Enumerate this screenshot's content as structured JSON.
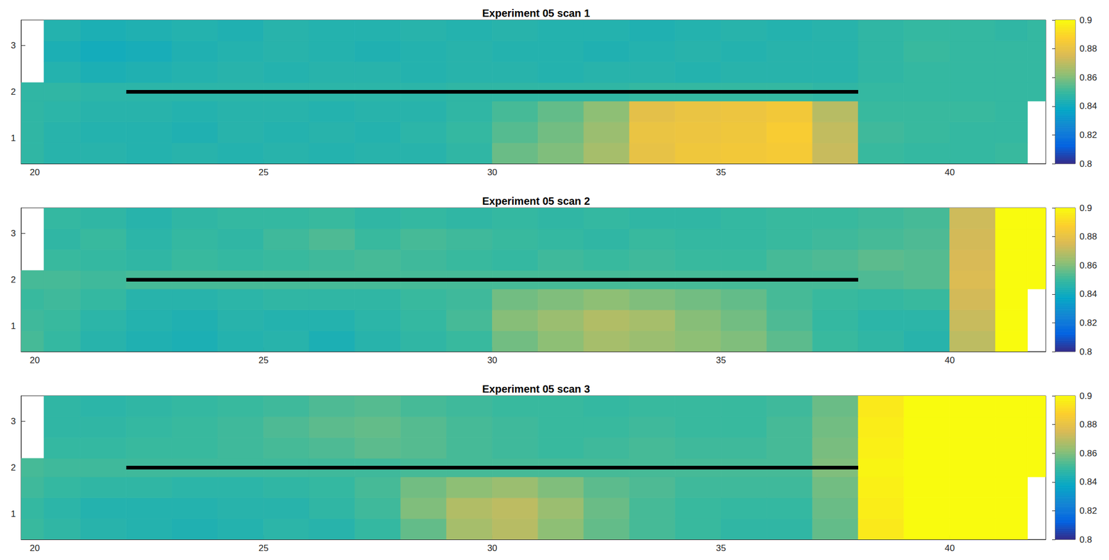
{
  "chart_data": [
    {
      "type": "heatmap",
      "title": "Experiment 05 scan 1",
      "xlim": [
        19.7,
        42.1
      ],
      "ylim": [
        0.45,
        3.55
      ],
      "xticks": [
        20,
        25,
        30,
        35,
        40
      ],
      "yticks": [
        1,
        2,
        3
      ],
      "x_edges": [
        19.7,
        20.2,
        21,
        22,
        23,
        24,
        25,
        26,
        27,
        28,
        29,
        30,
        31,
        32,
        33,
        34,
        35,
        36,
        37,
        38,
        39,
        40,
        41,
        41.7,
        42.1
      ],
      "y_edges": [
        0.45,
        0.9,
        1.35,
        1.8,
        2.2,
        2.65,
        3.1,
        3.55
      ],
      "cells": [
        [
          0.848,
          0.846,
          0.846,
          0.845,
          0.846,
          0.845,
          0.846,
          0.845,
          0.846,
          0.846,
          0.848,
          0.857,
          0.86,
          0.866,
          0.88,
          0.883,
          0.884,
          0.885,
          0.872,
          0.85,
          0.849,
          0.849,
          0.85,
          null
        ],
        [
          0.848,
          0.846,
          0.845,
          0.845,
          0.844,
          0.846,
          0.845,
          0.846,
          0.845,
          0.847,
          0.849,
          0.854,
          0.858,
          0.864,
          0.881,
          0.882,
          0.883,
          0.886,
          0.871,
          0.851,
          0.85,
          0.849,
          0.849,
          null
        ],
        [
          0.848,
          0.847,
          0.846,
          0.846,
          0.845,
          0.846,
          0.846,
          0.845,
          0.846,
          0.846,
          0.848,
          0.852,
          0.856,
          0.862,
          0.879,
          0.881,
          0.882,
          0.884,
          0.869,
          0.85,
          0.85,
          0.85,
          0.849,
          null
        ],
        [
          0.848,
          0.848,
          0.847,
          0.847,
          0.847,
          0.847,
          0.847,
          0.847,
          0.847,
          0.847,
          0.848,
          0.848,
          0.848,
          0.848,
          0.849,
          0.849,
          0.849,
          0.849,
          0.848,
          0.849,
          0.849,
          0.849,
          0.849,
          0.849
        ],
        [
          null,
          0.845,
          0.843,
          0.844,
          0.845,
          0.846,
          0.845,
          0.846,
          0.846,
          0.845,
          0.846,
          0.846,
          0.845,
          0.846,
          0.846,
          0.845,
          0.846,
          0.846,
          0.846,
          0.848,
          0.849,
          0.849,
          0.849,
          0.849
        ],
        [
          null,
          0.843,
          0.841,
          0.842,
          0.844,
          0.845,
          0.846,
          0.845,
          0.844,
          0.845,
          0.846,
          0.845,
          0.845,
          0.844,
          0.845,
          0.846,
          0.845,
          0.846,
          0.846,
          0.848,
          0.85,
          0.849,
          0.849,
          0.849
        ],
        [
          null,
          0.845,
          0.843,
          0.844,
          0.845,
          0.844,
          0.846,
          0.845,
          0.845,
          0.846,
          0.845,
          0.846,
          0.845,
          0.845,
          0.844,
          0.845,
          0.846,
          0.845,
          0.846,
          0.848,
          0.849,
          0.849,
          0.848,
          0.849
        ]
      ],
      "colorbar": {
        "range": [
          0.8,
          0.9
        ],
        "ticks": [
          0.8,
          0.82,
          0.84,
          0.86,
          0.88,
          0.9
        ]
      },
      "line": {
        "x": [
          22,
          38
        ],
        "y": [
          2,
          2
        ],
        "color": "#000000"
      }
    },
    {
      "type": "heatmap",
      "title": "Experiment 05 scan 2",
      "xlim": [
        19.7,
        42.1
      ],
      "ylim": [
        0.45,
        3.55
      ],
      "xticks": [
        20,
        25,
        30,
        35,
        40
      ],
      "yticks": [
        1,
        2,
        3
      ],
      "x_edges": [
        19.7,
        20.2,
        21,
        22,
        23,
        24,
        25,
        26,
        27,
        28,
        29,
        30,
        31,
        32,
        33,
        34,
        35,
        36,
        37,
        38,
        39,
        40,
        41,
        41.7,
        42.1
      ],
      "y_edges": [
        0.45,
        0.9,
        1.35,
        1.8,
        2.2,
        2.65,
        3.1,
        3.55
      ],
      "cells": [
        [
          0.852,
          0.849,
          0.846,
          0.844,
          0.843,
          0.845,
          0.846,
          0.843,
          0.846,
          0.848,
          0.85,
          0.858,
          0.862,
          0.866,
          0.864,
          0.862,
          0.86,
          0.855,
          0.85,
          0.848,
          0.846,
          0.87,
          0.915,
          null
        ],
        [
          0.851,
          0.85,
          0.847,
          0.845,
          0.844,
          0.846,
          0.845,
          0.845,
          0.847,
          0.849,
          0.852,
          0.861,
          0.864,
          0.868,
          0.866,
          0.861,
          0.858,
          0.853,
          0.849,
          0.847,
          0.847,
          0.872,
          0.915,
          null
        ],
        [
          0.85,
          0.851,
          0.849,
          0.846,
          0.846,
          0.847,
          0.848,
          0.848,
          0.848,
          0.85,
          0.851,
          0.858,
          0.86,
          0.862,
          0.86,
          0.858,
          0.856,
          0.852,
          0.85,
          0.849,
          0.85,
          0.874,
          0.915,
          null
        ],
        [
          0.852,
          0.852,
          0.851,
          0.852,
          0.852,
          0.852,
          0.852,
          0.852,
          0.852,
          0.852,
          0.852,
          0.852,
          0.852,
          0.852,
          0.852,
          0.852,
          0.852,
          0.852,
          0.852,
          0.853,
          0.854,
          0.876,
          0.915,
          0.915
        ],
        [
          null,
          0.85,
          0.849,
          0.848,
          0.85,
          0.849,
          0.85,
          0.851,
          0.852,
          0.851,
          0.85,
          0.849,
          0.851,
          0.85,
          0.851,
          0.85,
          0.85,
          0.852,
          0.853,
          0.855,
          0.854,
          0.875,
          0.915,
          0.915
        ],
        [
          null,
          0.848,
          0.85,
          0.847,
          0.849,
          0.848,
          0.851,
          0.853,
          0.85,
          0.852,
          0.851,
          0.85,
          0.849,
          0.848,
          0.85,
          0.849,
          0.849,
          0.85,
          0.851,
          0.852,
          0.853,
          0.874,
          0.915,
          0.915
        ],
        [
          null,
          0.849,
          0.848,
          0.846,
          0.848,
          0.849,
          0.849,
          0.85,
          0.848,
          0.849,
          0.848,
          0.849,
          0.848,
          0.849,
          0.848,
          0.848,
          0.849,
          0.85,
          0.85,
          0.851,
          0.852,
          0.873,
          0.915,
          0.915
        ]
      ],
      "colorbar": {
        "range": [
          0.8,
          0.9
        ],
        "ticks": [
          0.8,
          0.82,
          0.84,
          0.86,
          0.88,
          0.9
        ]
      },
      "line": {
        "x": [
          22,
          38
        ],
        "y": [
          2,
          2
        ],
        "color": "#000000"
      }
    },
    {
      "type": "heatmap",
      "title": "Experiment 05 scan 3",
      "xlim": [
        19.7,
        42.1
      ],
      "ylim": [
        0.45,
        3.55
      ],
      "xticks": [
        20,
        25,
        30,
        35,
        40
      ],
      "yticks": [
        1,
        2,
        3
      ],
      "x_edges": [
        19.7,
        20.2,
        21,
        22,
        23,
        24,
        25,
        26,
        27,
        28,
        29,
        30,
        31,
        32,
        33,
        34,
        35,
        36,
        37,
        38,
        39,
        40,
        41,
        41.7,
        42.1
      ],
      "y_edges": [
        0.45,
        0.9,
        1.35,
        1.8,
        2.2,
        2.65,
        3.1,
        3.55
      ],
      "cells": [
        [
          0.85,
          0.848,
          0.846,
          0.845,
          0.844,
          0.845,
          0.847,
          0.846,
          0.849,
          0.856,
          0.866,
          0.869,
          0.862,
          0.856,
          0.852,
          0.85,
          0.848,
          0.848,
          0.856,
          0.895,
          0.915,
          0.915,
          0.915,
          null
        ],
        [
          0.849,
          0.847,
          0.845,
          0.845,
          0.845,
          0.846,
          0.846,
          0.848,
          0.851,
          0.86,
          0.868,
          0.87,
          0.864,
          0.857,
          0.852,
          0.85,
          0.849,
          0.849,
          0.857,
          0.896,
          0.915,
          0.915,
          0.915,
          null
        ],
        [
          0.851,
          0.849,
          0.848,
          0.848,
          0.847,
          0.847,
          0.848,
          0.849,
          0.852,
          0.858,
          0.862,
          0.864,
          0.86,
          0.855,
          0.853,
          0.851,
          0.851,
          0.851,
          0.858,
          0.897,
          0.915,
          0.915,
          0.915,
          null
        ],
        [
          0.852,
          0.851,
          0.851,
          0.851,
          0.851,
          0.851,
          0.851,
          0.851,
          0.851,
          0.852,
          0.852,
          0.852,
          0.852,
          0.852,
          0.852,
          0.852,
          0.852,
          0.852,
          0.86,
          0.898,
          0.915,
          0.915,
          0.915,
          0.915
        ],
        [
          null,
          0.849,
          0.849,
          0.85,
          0.85,
          0.851,
          0.852,
          0.853,
          0.855,
          0.854,
          0.852,
          0.851,
          0.85,
          0.851,
          0.852,
          0.851,
          0.851,
          0.852,
          0.859,
          0.897,
          0.915,
          0.915,
          0.915,
          0.912
        ],
        [
          null,
          0.848,
          0.848,
          0.849,
          0.85,
          0.851,
          0.853,
          0.855,
          0.856,
          0.854,
          0.852,
          0.851,
          0.85,
          0.85,
          0.851,
          0.85,
          0.85,
          0.852,
          0.858,
          0.896,
          0.915,
          0.915,
          0.91,
          0.905
        ],
        [
          null,
          0.848,
          0.847,
          0.848,
          0.849,
          0.85,
          0.851,
          0.853,
          0.854,
          0.852,
          0.851,
          0.85,
          0.85,
          0.849,
          0.85,
          0.85,
          0.85,
          0.851,
          0.857,
          0.895,
          0.915,
          0.912,
          0.906,
          0.902
        ]
      ],
      "colorbar": {
        "range": [
          0.8,
          0.9
        ],
        "ticks": [
          0.8,
          0.82,
          0.84,
          0.86,
          0.88,
          0.9
        ]
      },
      "line": {
        "x": [
          22,
          38
        ],
        "y": [
          2,
          2
        ],
        "color": "#000000"
      }
    }
  ]
}
